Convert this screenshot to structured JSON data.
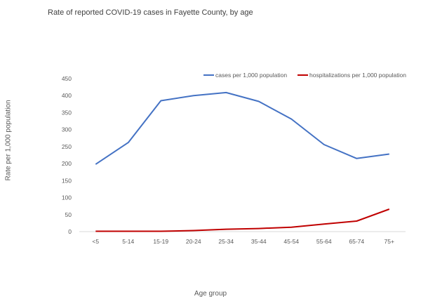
{
  "chart_data": {
    "type": "line",
    "title": "Rate of reported COVID-19 cases in Fayette County, by age",
    "xlabel": "Age group",
    "ylabel": "Rate per 1,000 population",
    "categories": [
      "<5",
      "5-14",
      "15-19",
      "20-24",
      "25-34",
      "35-44",
      "45-54",
      "55-64",
      "65-74",
      "75+"
    ],
    "ylim": [
      0,
      450
    ],
    "yticks": [
      0,
      50,
      100,
      150,
      200,
      250,
      300,
      350,
      400,
      450
    ],
    "grid": false,
    "legend_position": "top-right",
    "series": [
      {
        "name": "cases per 1,000 population",
        "color": "#4472C4",
        "values": [
          198,
          262,
          385,
          400,
          409,
          383,
          331,
          256,
          215,
          228
        ]
      },
      {
        "name": "hospitalizations per 1,000 population",
        "color": "#C00000",
        "values": [
          1,
          1,
          1,
          3,
          7,
          9,
          13,
          22,
          31,
          66
        ]
      }
    ]
  }
}
